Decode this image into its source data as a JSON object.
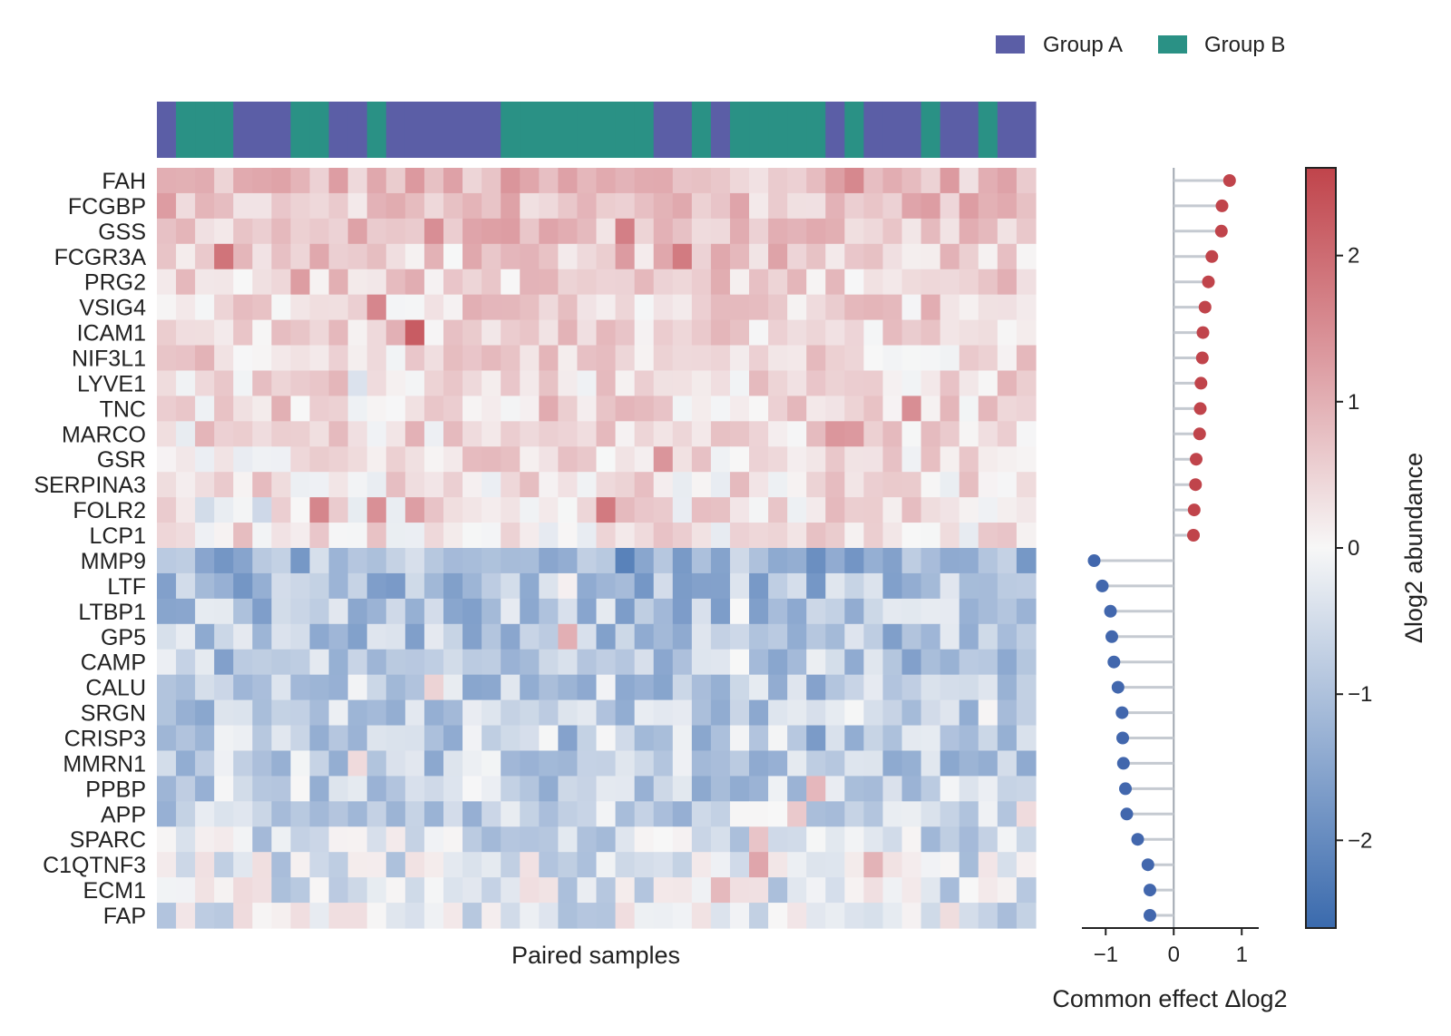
{
  "chart_data": [
    {
      "type": "heatmap",
      "title": "",
      "xlabel": "Paired samples",
      "ylabel": "",
      "genes": [
        "FAH",
        "FCGBP",
        "GSS",
        "FCGR3A",
        "PRG2",
        "VSIG4",
        "ICAM1",
        "NIF3L1",
        "LYVE1",
        "TNC",
        "MARCO",
        "GSR",
        "SERPINA3",
        "FOLR2",
        "LCP1",
        "MMP9",
        "LTF",
        "LTBP1",
        "GP5",
        "CAMP",
        "CALU",
        "SRGN",
        "CRISP3",
        "MMRN1",
        "PPBP",
        "APP",
        "SPARC",
        "C1QTNF3",
        "ECM1",
        "FAP"
      ],
      "sample_groups": [
        "A",
        "B",
        "B",
        "B",
        "A",
        "A",
        "A",
        "B",
        "B",
        "A",
        "A",
        "B",
        "A",
        "A",
        "A",
        "A",
        "A",
        "A",
        "B",
        "B",
        "B",
        "B",
        "B",
        "B",
        "B",
        "B",
        "A",
        "A",
        "B",
        "A",
        "B",
        "B",
        "B",
        "B",
        "B",
        "A",
        "B",
        "A",
        "A",
        "A",
        "B",
        "A",
        "A",
        "B",
        "A",
        "A"
      ],
      "legend": {
        "position": "top-right",
        "entries": [
          {
            "label": "Group A",
            "color": "#5b5ea6"
          },
          {
            "label": "Group B",
            "color": "#2a9185"
          }
        ]
      },
      "colorbar": {
        "label": "Δlog2 abundance",
        "range": [
          -2.6,
          2.6
        ],
        "ticks": [
          2,
          1,
          0,
          -1,
          -2
        ],
        "tick_labels": [
          "2",
          "1",
          "0",
          "−1",
          "−2"
        ],
        "colors": {
          "low": "#3a6aad",
          "mid": "#f7f7f7",
          "high": "#c0444b"
        }
      },
      "row_means": [
        0.85,
        0.73,
        0.72,
        0.58,
        0.53,
        0.48,
        0.45,
        0.44,
        0.42,
        0.41,
        0.4,
        0.35,
        0.34,
        0.32,
        0.31,
        -1.18,
        -1.05,
        -0.93,
        -0.91,
        -0.88,
        -0.82,
        -0.76,
        -0.75,
        -0.74,
        -0.71,
        -0.69,
        -0.53,
        -0.38,
        -0.35,
        -0.35
      ]
    },
    {
      "type": "scatter",
      "xlabel": "Common effect Δlog2",
      "ylabel": "",
      "xlim": [
        -1.35,
        1.25
      ],
      "xticks": [
        -1,
        0,
        1
      ],
      "xtick_labels": [
        "−1",
        "0",
        "1"
      ],
      "genes": [
        "FAH",
        "FCGBP",
        "GSS",
        "FCGR3A",
        "PRG2",
        "VSIG4",
        "ICAM1",
        "NIF3L1",
        "LYVE1",
        "TNC",
        "MARCO",
        "GSR",
        "SERPINA3",
        "FOLR2",
        "LCP1",
        "MMP9",
        "LTF",
        "LTBP1",
        "GP5",
        "CAMP",
        "CALU",
        "SRGN",
        "CRISP3",
        "MMRN1",
        "PPBP",
        "APP",
        "SPARC",
        "C1QTNF3",
        "ECM1",
        "FAP"
      ],
      "values": [
        0.82,
        0.71,
        0.7,
        0.56,
        0.51,
        0.46,
        0.43,
        0.42,
        0.4,
        0.39,
        0.38,
        0.33,
        0.32,
        0.3,
        0.29,
        -1.17,
        -1.05,
        -0.93,
        -0.91,
        -0.88,
        -0.82,
        -0.76,
        -0.75,
        -0.74,
        -0.71,
        -0.69,
        -0.53,
        -0.38,
        -0.35,
        -0.35
      ],
      "positive_color": "#c0444b",
      "negative_color": "#4267ad",
      "stem_color": "#c5cad1"
    }
  ]
}
